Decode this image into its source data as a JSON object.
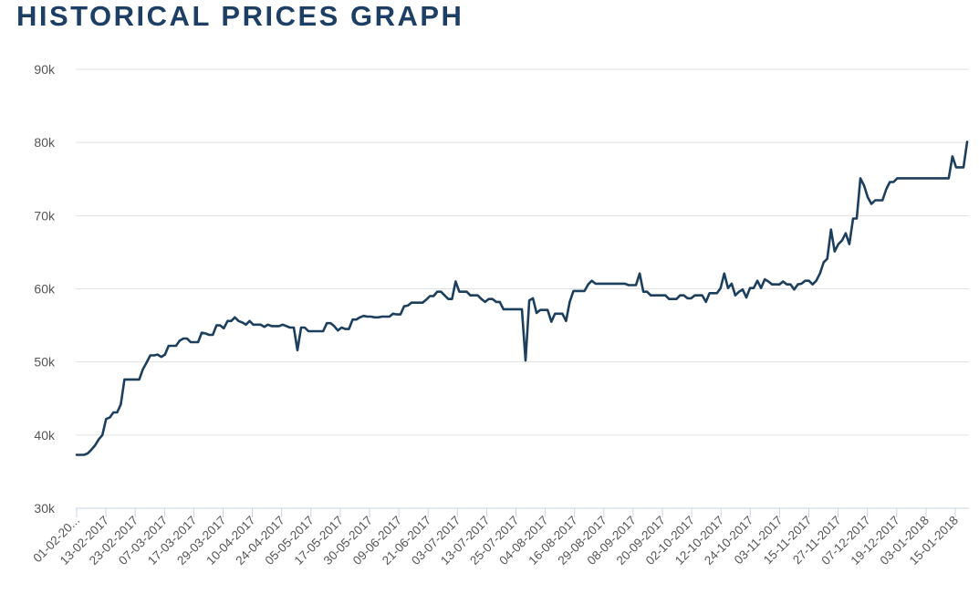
{
  "title": "HISTORICAL PRICES GRAPH",
  "colors": {
    "line": "#1d3f5e",
    "grid": "#e0e0e0",
    "axis": "#c8d4e4",
    "title": "#1d3f66"
  },
  "chart_data": {
    "type": "line",
    "title": "HISTORICAL PRICES GRAPH",
    "xlabel": "",
    "ylabel": "",
    "ylim": [
      30000,
      90000
    ],
    "grid": true,
    "y_ticks": [
      {
        "value": 30000,
        "label": "30k"
      },
      {
        "value": 40000,
        "label": "40k"
      },
      {
        "value": 50000,
        "label": "50k"
      },
      {
        "value": 60000,
        "label": "60k"
      },
      {
        "value": 70000,
        "label": "70k"
      },
      {
        "value": 80000,
        "label": "80k"
      },
      {
        "value": 90000,
        "label": "90k"
      }
    ],
    "x_tick_labels": [
      "01-02-20...",
      "13-02-2017",
      "23-02-2017",
      "07-03-2017",
      "17-03-2017",
      "29-03-2017",
      "10-04-2017",
      "24-04-2017",
      "05-05-2017",
      "17-05-2017",
      "30-05-2017",
      "09-06-2017",
      "21-06-2017",
      "03-07-2017",
      "13-07-2017",
      "25-07-2017",
      "04-08-2017",
      "16-08-2017",
      "29-08-2017",
      "08-09-2017",
      "20-09-2017",
      "02-10-2017",
      "12-10-2017",
      "24-10-2017",
      "03-11-2017",
      "15-11-2017",
      "27-11-2017",
      "07-12-2017",
      "19-12-2017",
      "03-01-2018",
      "15-01-2018"
    ],
    "series": [
      {
        "values": [
          37300,
          37300,
          37300,
          37500,
          38000,
          38600,
          39400,
          40000,
          42200,
          42400,
          43100,
          43100,
          44200,
          47600,
          47600,
          47600,
          47600,
          47600,
          49000,
          49900,
          50900,
          50900,
          51000,
          50700,
          51000,
          52200,
          52200,
          52200,
          52900,
          53200,
          53200,
          52700,
          52700,
          52700,
          54000,
          53900,
          53700,
          53700,
          55000,
          55000,
          54600,
          55600,
          55600,
          56100,
          55600,
          55400,
          55100,
          55600,
          55100,
          55100,
          55100,
          54800,
          55100,
          54900,
          54900,
          54900,
          55100,
          54900,
          54700,
          54700,
          51600,
          54700,
          54700,
          54200,
          54200,
          54200,
          54200,
          54200,
          55300,
          55300,
          54900,
          54300,
          54700,
          54500,
          54500,
          55800,
          55800,
          56100,
          56300,
          56200,
          56200,
          56100,
          56100,
          56200,
          56200,
          56200,
          56600,
          56500,
          56500,
          57600,
          57700,
          58100,
          58100,
          58100,
          58100,
          58500,
          59000,
          59000,
          59600,
          59600,
          59100,
          58600,
          58600,
          61000,
          59600,
          59600,
          59600,
          59100,
          59100,
          59100,
          58600,
          58200,
          58600,
          58600,
          58200,
          58200,
          57200,
          57200,
          57200,
          57200,
          57200,
          57200,
          50200,
          58400,
          58700,
          56700,
          57100,
          57100,
          57100,
          55500,
          56600,
          56600,
          56600,
          55600,
          58200,
          59700,
          59700,
          59700,
          59700,
          60600,
          61100,
          60700,
          60700,
          60700,
          60700,
          60700,
          60700,
          60700,
          60700,
          60700,
          60500,
          60500,
          60500,
          62100,
          59600,
          59600,
          59100,
          59100,
          59100,
          59100,
          59100,
          58600,
          58600,
          58600,
          59100,
          59100,
          58700,
          58700,
          59100,
          59100,
          59100,
          58200,
          59400,
          59400,
          59400,
          60100,
          62100,
          60100,
          60700,
          59100,
          59600,
          59900,
          58800,
          60100,
          60100,
          61100,
          60100,
          61300,
          61000,
          60600,
          60600,
          60600,
          61000,
          60600,
          60600,
          59900,
          60600,
          60700,
          61100,
          61100,
          60600,
          61100,
          62100,
          63600,
          64100,
          68100,
          65100,
          66100,
          66600,
          67600,
          66100,
          69600,
          69600,
          75100,
          74100,
          72500,
          71600,
          72100,
          72100,
          72100,
          73600,
          74600,
          74600,
          75100,
          75100,
          75100,
          75100,
          75100,
          75100,
          75100,
          75100,
          75100,
          75100,
          75100,
          75100,
          75100,
          75100,
          75100,
          78100,
          76600,
          76600,
          76600,
          80100
        ]
      }
    ]
  }
}
